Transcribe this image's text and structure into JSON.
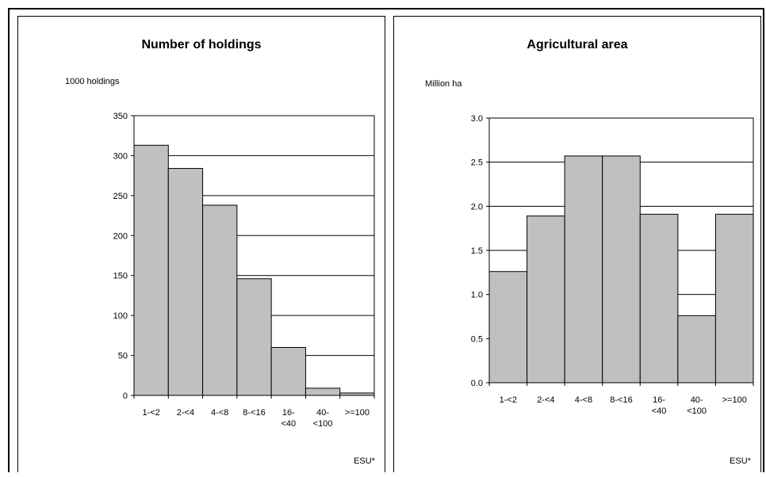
{
  "chart_data": [
    {
      "type": "bar",
      "title": "Number of holdings",
      "ylabel": "1000 holdings",
      "xlabel": "ESU*",
      "categories": [
        "1-<2",
        "2-<4",
        "4-<8",
        "8-<16",
        "16-<40",
        "40-<100",
        ">=100"
      ],
      "category_lines": [
        [
          "1-<2"
        ],
        [
          "2-<4"
        ],
        [
          "4-<8"
        ],
        [
          "8-<16"
        ],
        [
          "16-",
          "<40"
        ],
        [
          "40-",
          "<100"
        ],
        [
          ">=100"
        ]
      ],
      "values": [
        313,
        284,
        238,
        146,
        60,
        9,
        3
      ],
      "ylim": [
        0,
        350
      ],
      "yticks": [
        "0",
        "50",
        "100",
        "150",
        "200",
        "250",
        "300",
        "350"
      ],
      "ytick_values": [
        0,
        50,
        100,
        150,
        200,
        250,
        300,
        350
      ],
      "grid": true,
      "bar_color": "#c0c0c0"
    },
    {
      "type": "bar",
      "title": "Agricultural area",
      "ylabel": "Million ha",
      "xlabel": "ESU*",
      "categories": [
        "1-<2",
        "2-<4",
        "4-<8",
        "8-<16",
        "16-<40",
        "40-<100",
        ">=100"
      ],
      "category_lines": [
        [
          "1-<2"
        ],
        [
          "2-<4"
        ],
        [
          "4-<8"
        ],
        [
          "8-<16"
        ],
        [
          "16-",
          "<40"
        ],
        [
          "40-",
          "<100"
        ],
        [
          ">=100"
        ]
      ],
      "values": [
        1.26,
        1.89,
        2.57,
        2.57,
        1.91,
        0.76,
        1.91
      ],
      "ylim": [
        0,
        3
      ],
      "yticks": [
        "0.0",
        "0.5",
        "1.0",
        "1.5",
        "2.0",
        "2.5",
        "3.0"
      ],
      "ytick_values": [
        0,
        0.5,
        1,
        1.5,
        2,
        2.5,
        3
      ],
      "grid": true,
      "bar_color": "#c0c0c0"
    }
  ]
}
